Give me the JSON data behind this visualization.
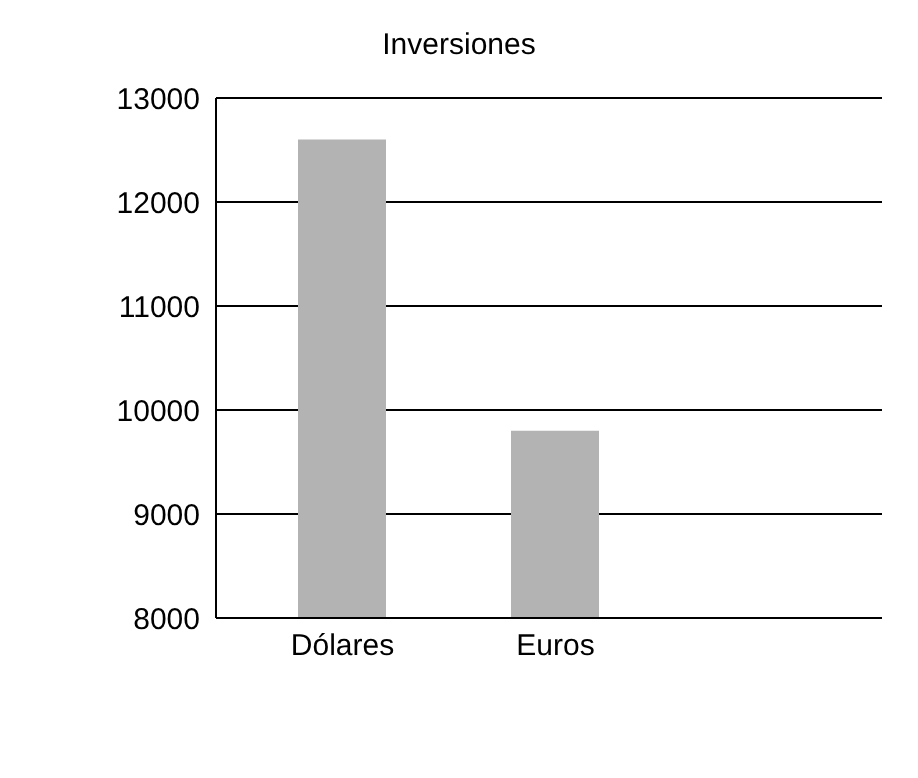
{
  "chart_data": {
    "type": "bar",
    "title": "Inversiones",
    "categories": [
      "Dólares",
      "Euros"
    ],
    "values": [
      12600,
      9800
    ],
    "color": "#b3b3b3",
    "ylim": [
      8000,
      13000
    ],
    "yticks": [
      8000,
      9000,
      10000,
      11000,
      12000,
      13000
    ],
    "grid": "y"
  }
}
